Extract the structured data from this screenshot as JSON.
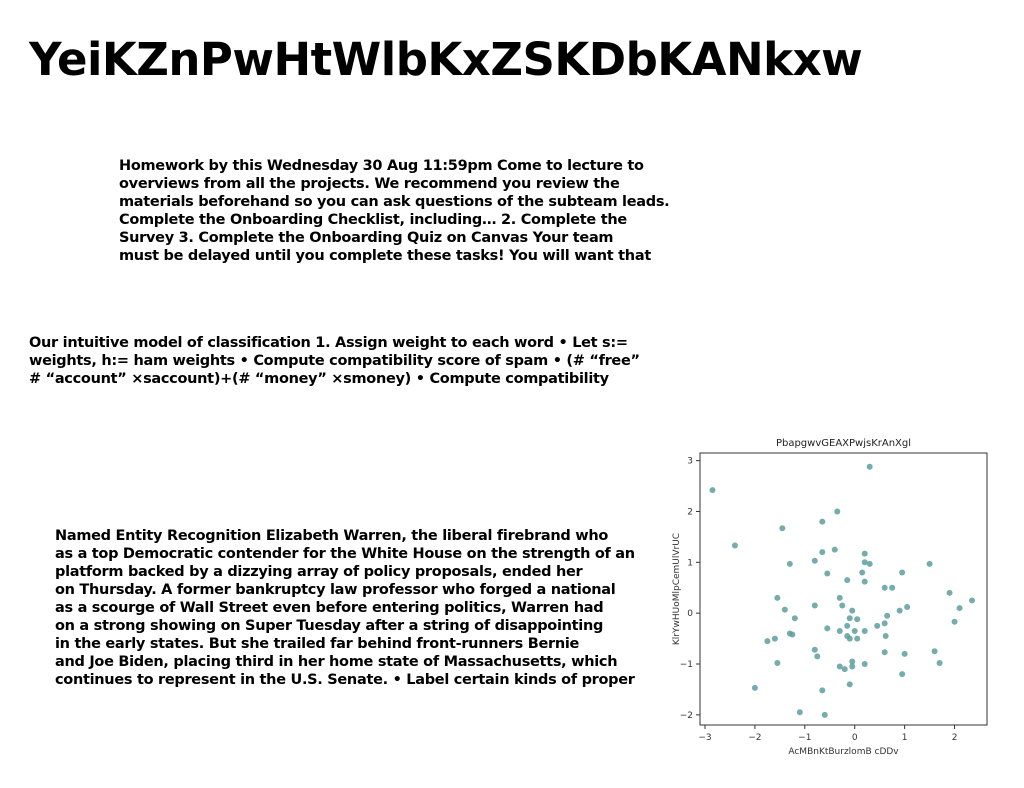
{
  "title": "YeiKZnPwHtWlbKxZSKDbKANkxw",
  "block1": {
    "lines": [
      "Homework by this Wednesday 30 Aug 11:59pm Come to lecture to",
      "overviews from all the projects. We recommend you review the",
      "materials beforehand so you can ask questions of the subteam leads.",
      "Complete the Onboarding Checklist, including… 2. Complete the",
      "Survey 3. Complete the Onboarding Quiz on Canvas Your team",
      "must be delayed until you complete these tasks! You will want that"
    ]
  },
  "block2": {
    "lines": [
      "Our intuitive model of classification 1. Assign weight to each word • Let s:=",
      "weights, h:= ham weights • Compute compatibility score of spam • (# “free”",
      "# “account” ×saccount)+(# “money” ×smoney) • Compute compatibility"
    ]
  },
  "block3": {
    "lines": [
      "Named Entity Recognition Elizabeth Warren, the liberal firebrand who",
      "as a top Democratic contender for the White House on the strength of an",
      "platform backed by a dizzying array of policy proposals, ended her",
      "on Thursday. A former bankruptcy law professor who forged a national",
      "as a scourge of Wall Street even before entering politics, Warren had",
      "on a strong showing on Super Tuesday after a string of disappointing",
      "in the early states. But she trailed far behind front-runners Bernie",
      "and Joe Biden, placing third in her home state of Massachusetts, which",
      "continues to represent in the U.S. Senate. • Label certain kinds of proper"
    ]
  },
  "chart_data": {
    "type": "scatter",
    "title": "PbapgwvGEAXPwjsKrAnXgl",
    "xlabel": "AcMBnKtBurzlomB cDDv",
    "ylabel": "KlrYwHUoMlpCemUlVrUC",
    "xlim": [
      -3.1,
      2.65
    ],
    "ylim": [
      -2.2,
      3.15
    ],
    "xticks": [
      -3,
      -2,
      -1,
      0,
      1,
      2
    ],
    "yticks": [
      -2,
      -1,
      0,
      1,
      2,
      3
    ],
    "xtick_labels": [
      "−3",
      "−2",
      "−1",
      "0",
      "1",
      "2"
    ],
    "ytick_labels": [
      "−2",
      "−1",
      "0",
      "1",
      "2",
      "3"
    ],
    "grid": false,
    "color": "#5f9e9e",
    "points": [
      [
        0.3,
        2.88
      ],
      [
        -2.85,
        2.42
      ],
      [
        -0.35,
        2.0
      ],
      [
        -0.65,
        1.8
      ],
      [
        -1.45,
        1.67
      ],
      [
        -2.4,
        1.33
      ],
      [
        -0.65,
        1.2
      ],
      [
        -0.4,
        1.25
      ],
      [
        0.2,
        1.17
      ],
      [
        0.3,
        0.97
      ],
      [
        0.2,
        1.0
      ],
      [
        -1.3,
        0.97
      ],
      [
        -0.8,
        1.03
      ],
      [
        0.15,
        0.8
      ],
      [
        -0.55,
        0.78
      ],
      [
        0.95,
        0.8
      ],
      [
        1.5,
        0.97
      ],
      [
        0.6,
        0.5
      ],
      [
        0.75,
        0.5
      ],
      [
        -0.15,
        0.65
      ],
      [
        0.2,
        0.62
      ],
      [
        1.9,
        0.4
      ],
      [
        -1.55,
        0.3
      ],
      [
        -0.3,
        0.3
      ],
      [
        -1.4,
        0.07
      ],
      [
        -1.2,
        -0.1
      ],
      [
        -0.8,
        0.15
      ],
      [
        -0.25,
        0.15
      ],
      [
        -0.05,
        0.05
      ],
      [
        0.9,
        0.05
      ],
      [
        1.05,
        0.12
      ],
      [
        0.65,
        -0.05
      ],
      [
        -0.1,
        -0.1
      ],
      [
        0.05,
        -0.12
      ],
      [
        2.1,
        0.1
      ],
      [
        2.35,
        0.25
      ],
      [
        2.0,
        -0.17
      ],
      [
        -0.55,
        -0.3
      ],
      [
        -0.3,
        -0.35
      ],
      [
        -0.15,
        -0.25
      ],
      [
        0.2,
        -0.35
      ],
      [
        0.0,
        -0.35
      ],
      [
        -1.3,
        -0.4
      ],
      [
        -1.25,
        -0.42
      ],
      [
        0.45,
        -0.25
      ],
      [
        0.6,
        -0.2
      ],
      [
        0.62,
        -0.45
      ],
      [
        -1.6,
        -0.5
      ],
      [
        -1.75,
        -0.55
      ],
      [
        -0.1,
        -0.5
      ],
      [
        0.05,
        -0.5
      ],
      [
        -0.15,
        -0.45
      ],
      [
        -0.8,
        -0.72
      ],
      [
        -0.75,
        -0.85
      ],
      [
        -0.05,
        -0.95
      ],
      [
        -1.55,
        -0.98
      ],
      [
        1.6,
        -0.75
      ],
      [
        1.7,
        -0.98
      ],
      [
        0.6,
        -0.77
      ],
      [
        1.0,
        -0.8
      ],
      [
        0.2,
        -1.0
      ],
      [
        -0.3,
        -1.05
      ],
      [
        -0.05,
        -1.05
      ],
      [
        -0.2,
        -1.1
      ],
      [
        0.95,
        -1.2
      ],
      [
        -0.1,
        -1.4
      ],
      [
        -2.0,
        -1.47
      ],
      [
        -0.65,
        -1.52
      ],
      [
        -1.1,
        -1.95
      ],
      [
        -0.6,
        -2.0
      ]
    ]
  }
}
